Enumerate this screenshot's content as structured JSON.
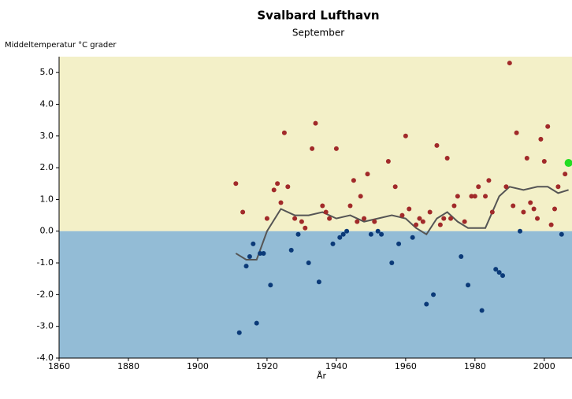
{
  "chart_data": {
    "type": "scatter",
    "title": "Svalbard Lufthavn",
    "subtitle": "September",
    "y_label": "Middeltemperatur °C grader",
    "x_label": "År",
    "xlim": [
      1860,
      2008
    ],
    "ylim": [
      -4,
      5.5
    ],
    "xticks": [
      1860,
      1880,
      1900,
      1920,
      1940,
      1960,
      1980,
      2000
    ],
    "yticks": [
      {
        "value": 5,
        "label": "5.0"
      },
      {
        "value": 4,
        "label": "4.0"
      },
      {
        "value": 3,
        "label": "3.0"
      },
      {
        "value": 2,
        "label": "2.0"
      },
      {
        "value": 1,
        "label": "1.0"
      },
      {
        "value": 0,
        "label": "0.0"
      },
      {
        "value": -1,
        "label": "-1.0"
      },
      {
        "value": -2,
        "label": "-2.0"
      },
      {
        "value": -3,
        "label": "-3.0"
      },
      {
        "value": -4,
        "label": "-4.0"
      }
    ],
    "normal": 0,
    "above_color": "#f3f0c8",
    "below_color": "#93bcd6",
    "series": [
      {
        "color": "#a12a2a",
        "x": [
          1911,
          1913,
          1920,
          1922,
          1923,
          1924,
          1925,
          1926,
          1928,
          1930,
          1931,
          1933,
          1934,
          1936,
          1937,
          1938,
          1940,
          1944,
          1945,
          1946,
          1947,
          1948,
          1949,
          1951,
          1955,
          1957,
          1959,
          1960,
          1961,
          1963,
          1964,
          1965,
          1967,
          1969,
          1970,
          1971,
          1972,
          1973,
          1974,
          1975,
          1977,
          1979,
          1980,
          1981,
          1983,
          1984,
          1985,
          1989,
          1990,
          1991,
          1992,
          1994,
          1995,
          1996,
          1997,
          1998,
          1999,
          2000,
          2001,
          2002,
          2003,
          2004,
          2006
        ],
        "values": [
          1.5,
          0.6,
          0.4,
          1.3,
          1.5,
          0.9,
          3.1,
          1.4,
          0.4,
          0.3,
          0.1,
          2.6,
          3.4,
          0.8,
          0.6,
          0.4,
          2.6,
          0.8,
          1.6,
          0.3,
          1.1,
          0.4,
          1.8,
          0.3,
          2.2,
          1.4,
          0.5,
          3.0,
          0.7,
          0.2,
          0.4,
          0.3,
          0.6,
          2.7,
          0.2,
          0.4,
          2.3,
          0.4,
          0.8,
          1.1,
          0.3,
          1.1,
          1.1,
          1.4,
          1.1,
          1.6,
          0.6,
          1.4,
          5.3,
          0.8,
          3.1,
          0.6,
          2.3,
          0.9,
          0.7,
          0.4,
          2.9,
          2.2,
          3.3,
          0.2,
          0.7,
          1.4,
          1.8
        ]
      },
      {
        "color": "#0b3a78",
        "x": [
          1912,
          1914,
          1915,
          1916,
          1917,
          1918,
          1919,
          1921,
          1927,
          1929,
          1932,
          1935,
          1939,
          1941,
          1942,
          1943,
          1950,
          1952,
          1953,
          1956,
          1958,
          1962,
          1966,
          1968,
          1976,
          1978,
          1982,
          1986,
          1987,
          1988,
          1993,
          2005
        ],
        "values": [
          -3.2,
          -1.1,
          -0.8,
          -0.4,
          -2.9,
          -0.7,
          -0.7,
          -1.7,
          -0.6,
          -0.1,
          -1.0,
          -1.6,
          -0.4,
          -0.2,
          -0.1,
          0.0,
          -0.1,
          0.0,
          -0.1,
          -1.0,
          -0.4,
          -0.2,
          -2.3,
          -2.0,
          -0.8,
          -1.7,
          -2.5,
          -1.2,
          -1.3,
          -1.4,
          0.0,
          -0.1
        ]
      },
      {
        "color": "#22dd22",
        "x": [
          2007
        ],
        "values": [
          2.15
        ]
      }
    ],
    "trend": {
      "color": "#555555",
      "x": [
        1911,
        1914,
        1917,
        1920,
        1924,
        1928,
        1932,
        1936,
        1940,
        1944,
        1948,
        1952,
        1956,
        1960,
        1963,
        1966,
        1969,
        1972,
        1975,
        1978,
        1983,
        1987,
        1990,
        1994,
        1998,
        2001,
        2004,
        2007
      ],
      "values": [
        -0.7,
        -0.9,
        -0.9,
        0.0,
        0.7,
        0.5,
        0.5,
        0.6,
        0.4,
        0.5,
        0.3,
        0.4,
        0.5,
        0.4,
        0.1,
        -0.1,
        0.4,
        0.6,
        0.3,
        0.1,
        0.1,
        1.1,
        1.4,
        1.3,
        1.4,
        1.4,
        1.2,
        1.3
      ]
    }
  }
}
